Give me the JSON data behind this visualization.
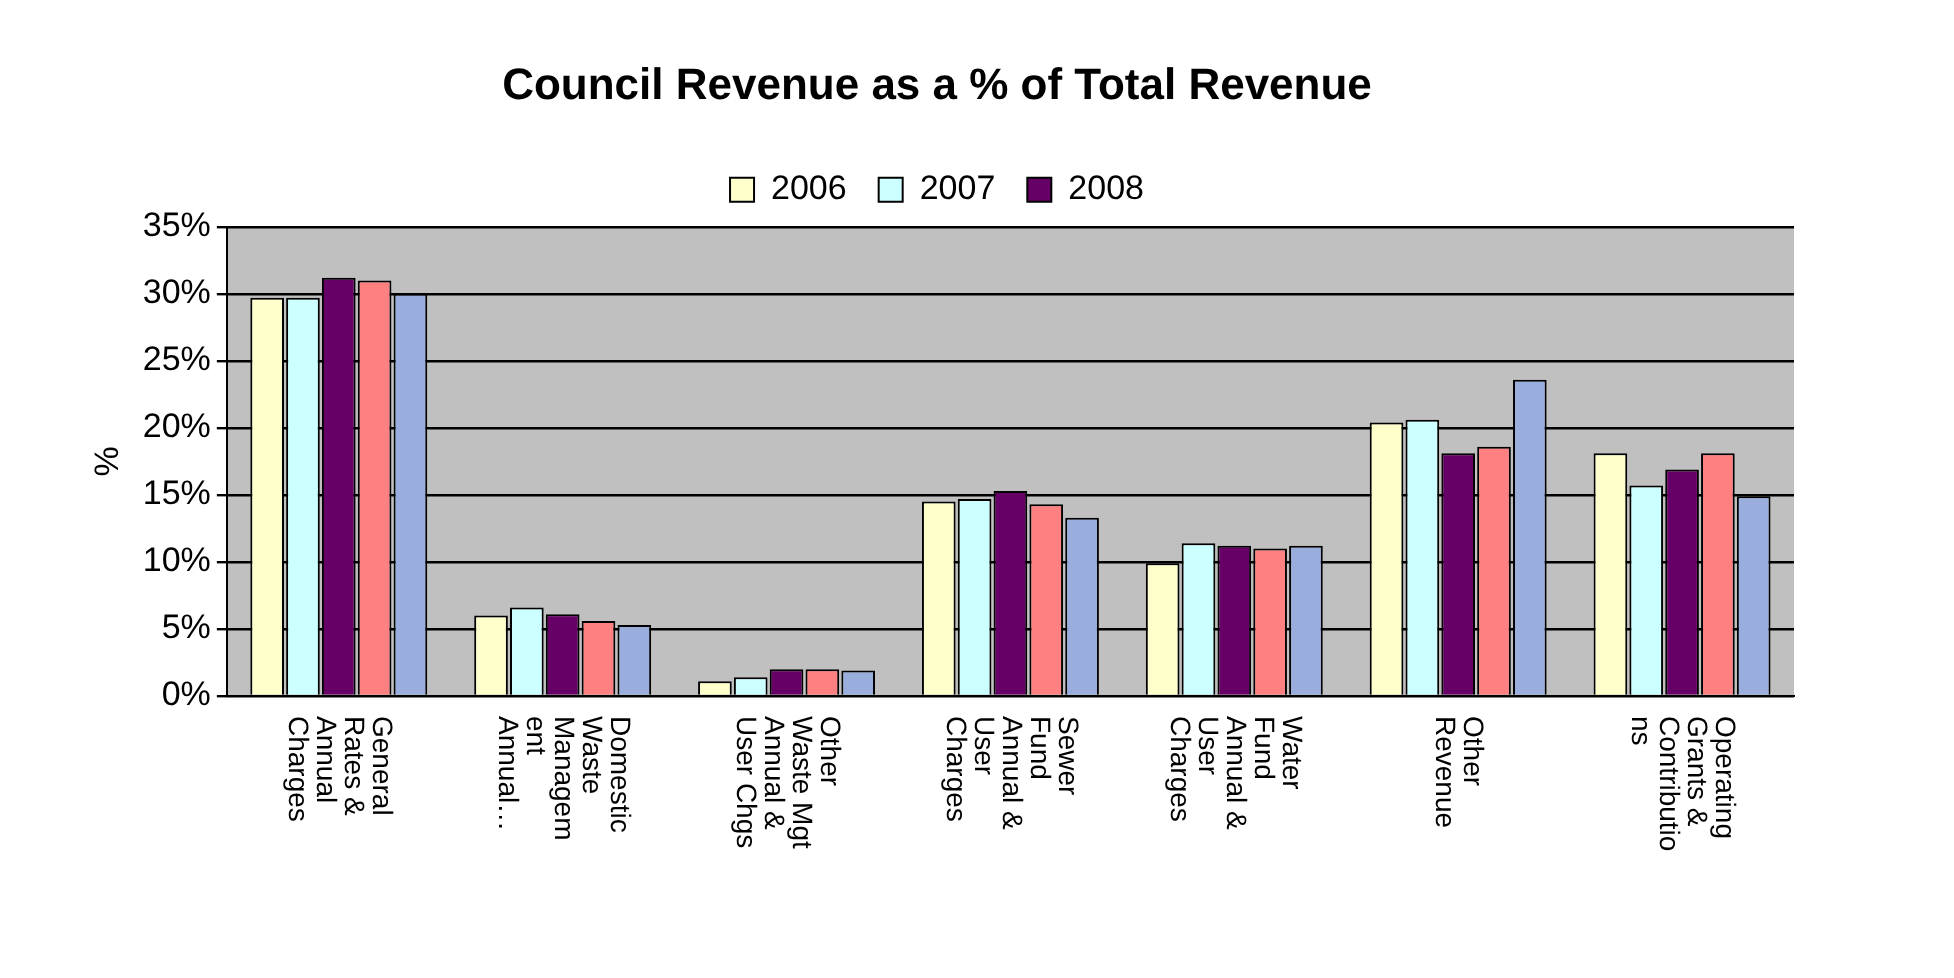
{
  "chart_data": {
    "type": "bar",
    "title": "Council Revenue as a % of Total Revenue",
    "ylabel": "%",
    "categories": [
      "General Rates & Annual Charges",
      "Domestic Waste Management Annual…",
      "Other Waste Mgt Annual & User Chgs",
      "Sewer Fund Annual & User Charges",
      "Water Fund Annual & User Charges",
      "Other Revenue",
      "Operating Grants & Contributions"
    ],
    "series": [
      {
        "name": "2006",
        "color": "#ffffcc",
        "values": [
          29.7,
          6.0,
          1.1,
          14.5,
          9.9,
          20.4,
          18.1
        ]
      },
      {
        "name": "2007",
        "color": "#ccffff",
        "values": [
          29.7,
          6.6,
          1.4,
          14.7,
          11.4,
          20.6,
          15.7
        ]
      },
      {
        "name": "2008",
        "color": "#660066",
        "values": [
          31.2,
          6.1,
          2.0,
          15.3,
          11.2,
          18.1,
          16.9
        ]
      },
      {
        "color": "#ff8080",
        "values": [
          31.0,
          5.6,
          2.0,
          14.3,
          11.0,
          18.6,
          18.1
        ]
      },
      {
        "color": "#99aedd",
        "values": [
          30.0,
          5.3,
          1.9,
          13.3,
          11.2,
          23.6,
          14.9
        ]
      }
    ],
    "ylim": [
      0,
      35
    ],
    "yticks": [
      {
        "value": 0,
        "label": "0%"
      },
      {
        "value": 5,
        "label": "5%"
      },
      {
        "value": 10,
        "label": "10%"
      },
      {
        "value": 15,
        "label": "15%"
      },
      {
        "value": 20,
        "label": "20%"
      },
      {
        "value": 25,
        "label": "25%"
      },
      {
        "value": 30,
        "label": "30%"
      },
      {
        "value": 35,
        "label": "35%"
      }
    ],
    "grid": "y",
    "legend": "top"
  }
}
